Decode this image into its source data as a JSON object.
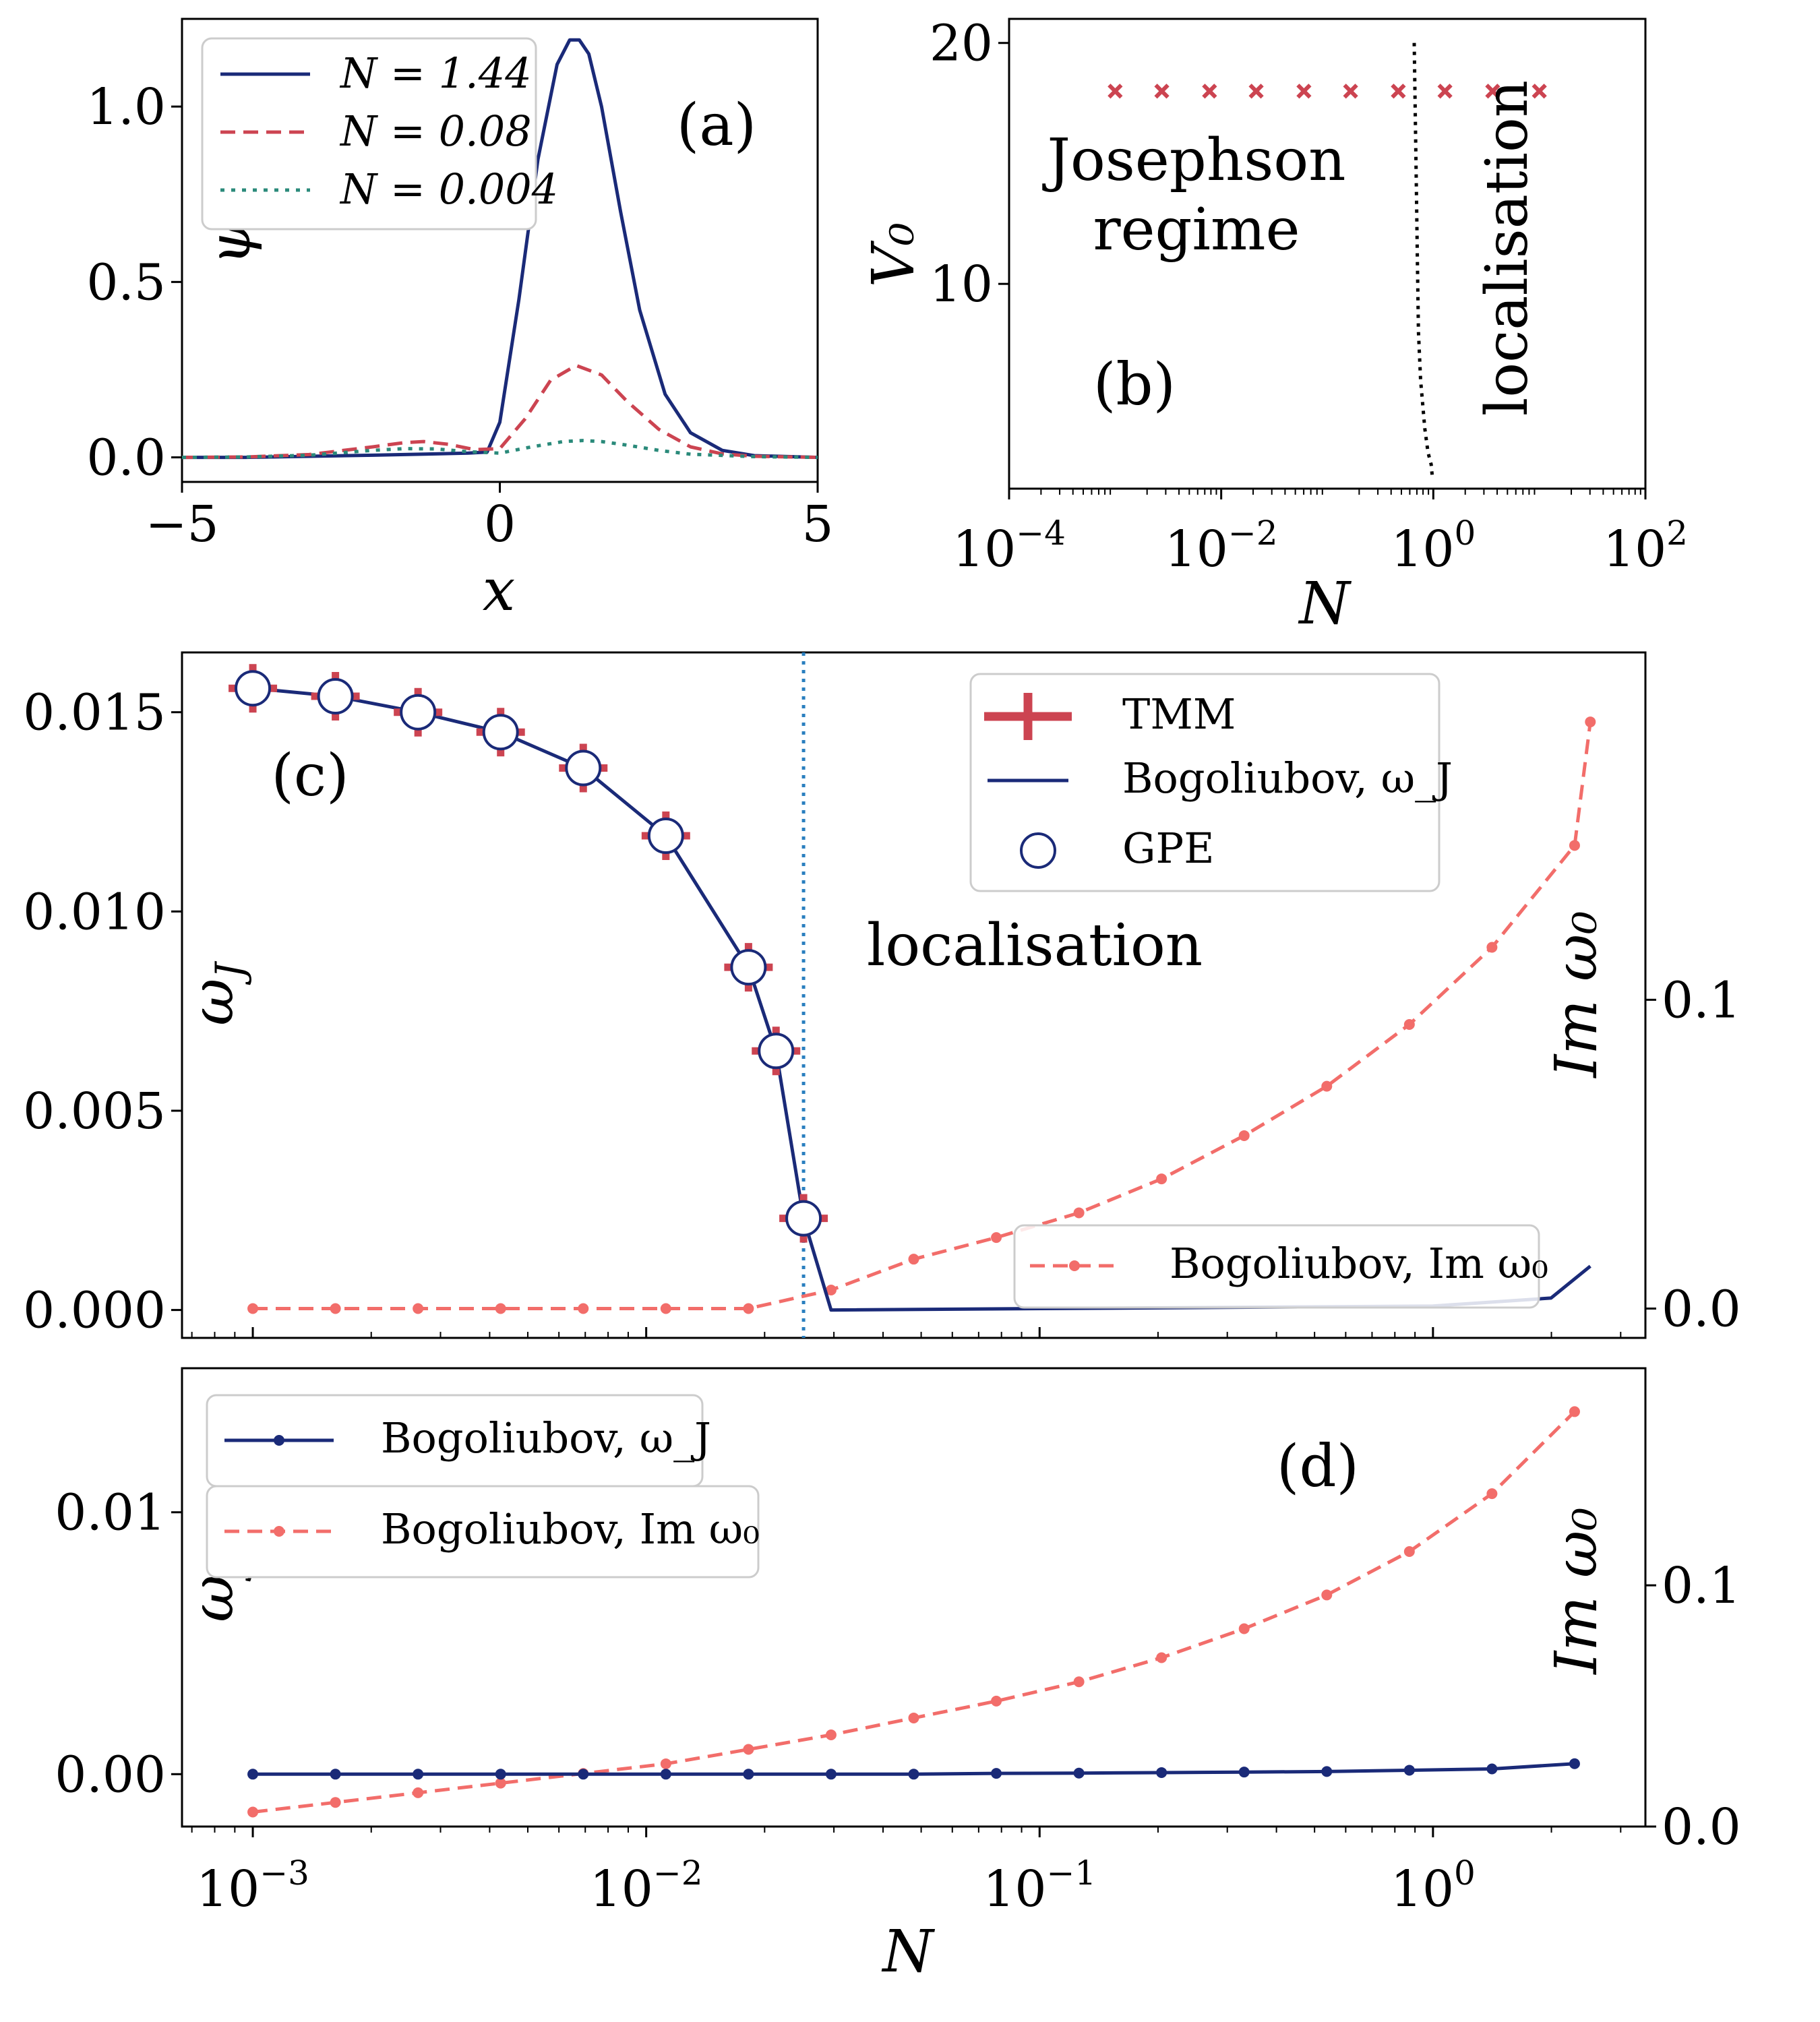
{
  "colors": {
    "navy": "#1a2a78",
    "red": "#cc4451",
    "salmon": "#f26d6a",
    "teal": "#2a8a7a",
    "vline": "#2a7fbf"
  },
  "chart_data": [
    {
      "id": "a",
      "type": "line",
      "panel_label": "(a)",
      "xlabel": "x",
      "ylabel": "ψ",
      "xlim": [
        -5,
        5
      ],
      "ylim": [
        -0.07,
        1.25
      ],
      "xticks": [
        {
          "v": -5,
          "label": "−5"
        },
        {
          "v": 0,
          "label": "0"
        },
        {
          "v": 5,
          "label": "5"
        }
      ],
      "yticks": [
        {
          "v": 0,
          "label": "0.0"
        },
        {
          "v": 0.5,
          "label": "0.5"
        },
        {
          "v": 1,
          "label": "1.0"
        }
      ],
      "series": [
        {
          "name": "N = 1.44",
          "color": "#1a2a78",
          "dash": "",
          "x": [
            -5,
            -4,
            -3,
            -2,
            -1.5,
            -1,
            -0.5,
            -0.2,
            0,
            0.3,
            0.6,
            0.9,
            1.1,
            1.25,
            1.4,
            1.6,
            1.9,
            2.2,
            2.6,
            3,
            3.5,
            4,
            5
          ],
          "y": [
            0,
            0,
            0.003,
            0.006,
            0.008,
            0.01,
            0.012,
            0.015,
            0.1,
            0.45,
            0.85,
            1.12,
            1.19,
            1.19,
            1.15,
            1.0,
            0.7,
            0.42,
            0.18,
            0.07,
            0.02,
            0.005,
            0
          ]
        },
        {
          "name": "N = 0.08",
          "color": "#cc4451",
          "dash": "22 12",
          "x": [
            -5,
            -4,
            -3,
            -2,
            -1.5,
            -1.2,
            -0.8,
            -0.4,
            0,
            0.4,
            0.8,
            1.2,
            1.6,
            2,
            2.5,
            3,
            3.5,
            4,
            5
          ],
          "y": [
            0,
            0.001,
            0.008,
            0.03,
            0.042,
            0.045,
            0.037,
            0.022,
            0.025,
            0.11,
            0.22,
            0.262,
            0.235,
            0.16,
            0.08,
            0.03,
            0.01,
            0.003,
            0
          ]
        },
        {
          "name": "N = 0.004",
          "color": "#2a8a7a",
          "dash": "6 10",
          "x": [
            -5,
            -4,
            -3,
            -2,
            -1.5,
            -1,
            -0.5,
            0,
            0.5,
            1,
            1.3,
            1.6,
            2,
            2.5,
            3,
            4,
            5
          ],
          "y": [
            0,
            0.001,
            0.006,
            0.02,
            0.025,
            0.024,
            0.016,
            0.012,
            0.03,
            0.045,
            0.048,
            0.045,
            0.035,
            0.02,
            0.009,
            0.002,
            0
          ]
        }
      ],
      "legend": [
        {
          "label": "N = 1.44"
        },
        {
          "label": "N = 0.08"
        },
        {
          "label": "N = 0.004"
        }
      ]
    },
    {
      "id": "b",
      "type": "scatter",
      "panel_label": "(b)",
      "xlabel": "N",
      "ylabel": "V₀",
      "xscale": "log",
      "xlim_log10": [
        -4,
        2
      ],
      "ylim": [
        1.5,
        21
      ],
      "xticks": [
        {
          "v": -4,
          "base": "10",
          "exp": "−4"
        },
        {
          "v": -2,
          "base": "10",
          "exp": "−2"
        },
        {
          "v": 0,
          "base": "10",
          "exp": "0"
        },
        {
          "v": 2,
          "base": "10",
          "exp": "2"
        }
      ],
      "yticks": [
        {
          "v": 10,
          "label": "10"
        },
        {
          "v": 20,
          "label": "20"
        }
      ],
      "points_log10N": [
        -3,
        -2.56,
        -2.11,
        -1.67,
        -1.22,
        -0.78,
        -0.33,
        0.11,
        0.56,
        1.0
      ],
      "points_V0": 18,
      "boundary_log10N": [
        -0.18,
        -0.17,
        -0.16,
        -0.15,
        -0.14,
        -0.12,
        -0.1,
        -0.08,
        -0.05,
        -0.02,
        -0.01
      ],
      "boundary_V0": [
        20,
        17,
        14,
        11,
        8,
        6,
        5,
        4,
        3,
        2.5,
        2
      ],
      "annotations": {
        "josephson_1": "Josephson",
        "josephson_2": "regime",
        "localisation": "localisation"
      }
    },
    {
      "id": "c",
      "type": "line",
      "panel_label": "(c)",
      "ylabel_left": "ω_J",
      "ylabel_right": "Im ω₀",
      "xscale": "log",
      "xlim_log10": [
        -3.18,
        0.54
      ],
      "ylim_left": [
        -0.0007,
        0.0165
      ],
      "ylim_right": [
        -0.0095,
        0.2125
      ],
      "yticks_left": [
        {
          "v": 0,
          "label": "0.000"
        },
        {
          "v": 0.005,
          "label": "0.005"
        },
        {
          "v": 0.01,
          "label": "0.010"
        },
        {
          "v": 0.015,
          "label": "0.015"
        }
      ],
      "yticks_right": [
        {
          "v": 0,
          "label": "0.0"
        },
        {
          "v": 0.1,
          "label": "0.1"
        }
      ],
      "critical_log10N": -1.6,
      "annotation": "localisation",
      "tmm_log10N": [
        -3.0,
        -2.79,
        -2.58,
        -2.37,
        -2.16,
        -1.95,
        -1.74,
        -1.67,
        -1.6
      ],
      "tmm_omegaJ": [
        0.0156,
        0.0154,
        0.015,
        0.0145,
        0.0136,
        0.0119,
        0.0086,
        0.0065,
        0.0023
      ],
      "gpe_log10N": [
        -3.0,
        -2.79,
        -2.58,
        -2.37,
        -2.16,
        -1.95,
        -1.74,
        -1.67,
        -1.6
      ],
      "gpe_omegaJ": [
        0.0156,
        0.0154,
        0.015,
        0.0145,
        0.0136,
        0.0119,
        0.0086,
        0.0065,
        0.0023
      ],
      "bogo_omega_log10N": [
        -3.0,
        -2.79,
        -2.58,
        -2.37,
        -2.16,
        -1.95,
        -1.74,
        -1.67,
        -1.6,
        -1.53,
        0.0,
        0.3,
        0.4
      ],
      "bogo_omegaJ": [
        0.0156,
        0.0154,
        0.015,
        0.0145,
        0.0136,
        0.0119,
        0.0086,
        0.0065,
        0.0023,
        0.0,
        0.0001,
        0.0003,
        0.0011
      ],
      "im_log10N": [
        -3.0,
        -2.79,
        -2.58,
        -2.37,
        -2.16,
        -1.95,
        -1.74,
        -1.53,
        -1.32,
        -1.11,
        -0.9,
        -0.69,
        -0.48,
        -0.27,
        -0.06,
        0.15,
        0.36,
        0.4
      ],
      "im_omega0": [
        0,
        0,
        0,
        0,
        0,
        0,
        0,
        0.006,
        0.016,
        0.023,
        0.031,
        0.042,
        0.056,
        0.072,
        0.092,
        0.117,
        0.15,
        0.19
      ],
      "legend_upper": [
        {
          "label": "TMM"
        },
        {
          "label": "Bogoliubov, ω_J"
        },
        {
          "label": "GPE"
        }
      ],
      "legend_lower": [
        {
          "label": "Bogoliubov, Im ω₀"
        }
      ]
    },
    {
      "id": "d",
      "type": "line",
      "panel_label": "(d)",
      "xlabel": "N",
      "ylabel_left": "ω_J",
      "ylabel_right": "Im ω₀",
      "xscale": "log",
      "xlim_log10": [
        -3.18,
        0.54
      ],
      "ylim_left": [
        -0.002,
        0.0155
      ],
      "ylim_right": [
        0,
        0.19
      ],
      "xticks": [
        {
          "v": -3,
          "base": "10",
          "exp": "−3"
        },
        {
          "v": -2,
          "base": "10",
          "exp": "−2"
        },
        {
          "v": -1,
          "base": "10",
          "exp": "−1"
        },
        {
          "v": 0,
          "base": "10",
          "exp": "0"
        }
      ],
      "yticks_left": [
        {
          "v": 0,
          "label": "0.00"
        },
        {
          "v": 0.01,
          "label": "0.01"
        }
      ],
      "yticks_right": [
        {
          "v": 0,
          "label": "0.0"
        },
        {
          "v": 0.1,
          "label": "0.1"
        }
      ],
      "log10N": [
        -3.0,
        -2.79,
        -2.58,
        -2.37,
        -2.16,
        -1.95,
        -1.74,
        -1.53,
        -1.32,
        -1.11,
        -0.9,
        -0.69,
        -0.48,
        -0.27,
        -0.06,
        0.15,
        0.36
      ],
      "omegaJ": [
        0,
        0,
        0,
        0,
        0,
        0,
        0,
        0,
        0,
        3e-05,
        4e-05,
        6e-05,
        8e-05,
        0.0001,
        0.00015,
        0.0002,
        0.0004
      ],
      "im_omega0": [
        0.006,
        0.01,
        0.014,
        0.018,
        0.022,
        0.026,
        0.032,
        0.038,
        0.045,
        0.052,
        0.06,
        0.07,
        0.082,
        0.096,
        0.114,
        0.138,
        0.172
      ],
      "legend": [
        {
          "label": "Bogoliubov, ω_J"
        },
        {
          "label": "Bogoliubov, Im ω₀"
        }
      ]
    }
  ]
}
